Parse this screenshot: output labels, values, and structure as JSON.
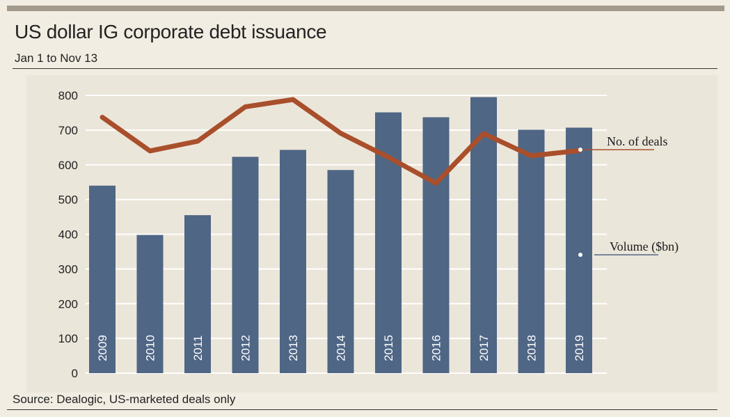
{
  "header": {
    "title": "US dollar IG corporate debt issuance",
    "subtitle": "Jan 1 to Nov 13"
  },
  "footer": {
    "source": "Source: Dealogic, US-marketed deals only"
  },
  "colors": {
    "bar": "#4f6685",
    "line": "#a94f2b",
    "gridline": "#ffffff",
    "background": "#f2ede2",
    "plot_background": "#ebe6da"
  },
  "chart_data": {
    "type": "bar",
    "categories": [
      "2009",
      "2010",
      "2011",
      "2012",
      "2013",
      "2014",
      "2015",
      "2016",
      "2017",
      "2018",
      "2019"
    ],
    "series": [
      {
        "name": "Volume ($bn)",
        "type": "bar",
        "values": [
          540,
          398,
          455,
          623,
          643,
          585,
          751,
          737,
          795,
          701,
          707
        ]
      },
      {
        "name": "No. of deals",
        "type": "line",
        "values": [
          737,
          640,
          668,
          767,
          788,
          691,
          622,
          547,
          690,
          626,
          641
        ]
      }
    ],
    "yticks": [
      "0",
      "100",
      "200",
      "300",
      "400",
      "500",
      "600",
      "700",
      "800"
    ],
    "ylim": [
      0,
      800
    ],
    "grid": true,
    "xlabel": "",
    "ylabel": "",
    "annotations": {
      "line_label": "No. of deals",
      "bar_label": "Volume ($bn)"
    }
  }
}
